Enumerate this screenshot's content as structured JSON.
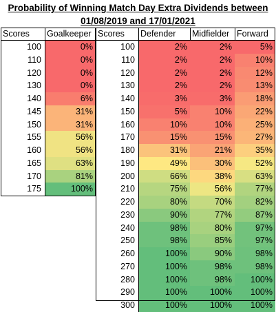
{
  "title": {
    "line1": "Probability of Winning Match Day Extra Dividends between",
    "line2": "01/08/2019 and 17/01/2021"
  },
  "goalkeeper_table": {
    "headers": [
      "Scores",
      "Goalkeeper"
    ],
    "rows": [
      {
        "score": "100",
        "gk": "0%",
        "color": "#f8696b"
      },
      {
        "score": "110",
        "gk": "0%",
        "color": "#f8696b"
      },
      {
        "score": "120",
        "gk": "0%",
        "color": "#f8696b"
      },
      {
        "score": "130",
        "gk": "0%",
        "color": "#f8696b"
      },
      {
        "score": "140",
        "gk": "6%",
        "color": "#f97d6e"
      },
      {
        "score": "145",
        "gk": "31%",
        "color": "#fbb479"
      },
      {
        "score": "150",
        "gk": "31%",
        "color": "#fbb479"
      },
      {
        "score": "155",
        "gk": "56%",
        "color": "#f0e383"
      },
      {
        "score": "160",
        "gk": "56%",
        "color": "#f0e383"
      },
      {
        "score": "165",
        "gk": "63%",
        "color": "#dfe082"
      },
      {
        "score": "170",
        "gk": "81%",
        "color": "#a9d27f"
      },
      {
        "score": "175",
        "gk": "100%",
        "color": "#63be7b"
      }
    ]
  },
  "outfield_table": {
    "headers": [
      "Scores",
      "Defender",
      "Midfielder",
      "Forward"
    ],
    "rows": [
      {
        "score": "100",
        "def": "2%",
        "def_color": "#f8696b",
        "mid": "2%",
        "mid_color": "#f8696b",
        "fwd": "5%",
        "fwd_color": "#f8696b"
      },
      {
        "score": "110",
        "def": "2%",
        "def_color": "#f8696b",
        "mid": "2%",
        "mid_color": "#f8696b",
        "fwd": "10%",
        "fwd_color": "#f98170"
      },
      {
        "score": "120",
        "def": "2%",
        "def_color": "#f8696b",
        "mid": "2%",
        "mid_color": "#f8696b",
        "fwd": "12%",
        "fwd_color": "#f98971"
      },
      {
        "score": "130",
        "def": "2%",
        "def_color": "#f8696b",
        "mid": "2%",
        "mid_color": "#f8696b",
        "fwd": "13%",
        "fwd_color": "#f98c71"
      },
      {
        "score": "140",
        "def": "3%",
        "def_color": "#f86c6b",
        "mid": "3%",
        "mid_color": "#f86c6b",
        "fwd": "18%",
        "fwd_color": "#fa9c74"
      },
      {
        "score": "150",
        "def": "5%",
        "def_color": "#f8716c",
        "mid": "10%",
        "mid_color": "#f98170",
        "fwd": "22%",
        "fwd_color": "#faa775"
      },
      {
        "score": "160",
        "def": "10%",
        "def_color": "#f98170",
        "mid": "10%",
        "mid_color": "#f98170",
        "fwd": "25%",
        "fwd_color": "#fbb077"
      },
      {
        "score": "170",
        "def": "15%",
        "def_color": "#f99172",
        "mid": "15%",
        "mid_color": "#f99172",
        "fwd": "27%",
        "fwd_color": "#fbb678"
      },
      {
        "score": "180",
        "def": "31%",
        "def_color": "#fbc37b",
        "mid": "21%",
        "mid_color": "#faa475",
        "fwd": "35%",
        "fwd_color": "#fccf7e"
      },
      {
        "score": "190",
        "def": "49%",
        "def_color": "#fee882",
        "mid": "30%",
        "mid_color": "#fbc07a",
        "fwd": "52%",
        "fwd_color": "#f6e883"
      },
      {
        "score": "200",
        "def": "66%",
        "def_color": "#cfdd82",
        "mid": "38%",
        "mid_color": "#fdd87f",
        "fwd": "63%",
        "fwd_color": "#d8df82"
      },
      {
        "score": "210",
        "def": "75%",
        "def_color": "#b6d680",
        "mid": "56%",
        "mid_color": "#ede683",
        "fwd": "77%",
        "fwd_color": "#b1d47f"
      },
      {
        "score": "220",
        "def": "80%",
        "def_color": "#a8d27f",
        "mid": "70%",
        "mid_color": "#c4da81",
        "fwd": "82%",
        "fwd_color": "#a3d07f"
      },
      {
        "score": "230",
        "def": "90%",
        "def_color": "#8ac97e",
        "mid": "77%",
        "mid_color": "#b1d47f",
        "fwd": "87%",
        "fwd_color": "#93cc7e"
      },
      {
        "score": "240",
        "def": "98%",
        "def_color": "#6ec17c",
        "mid": "80%",
        "mid_color": "#a8d27f",
        "fwd": "97%",
        "fwd_color": "#72c27c"
      },
      {
        "score": "250",
        "def": "98%",
        "def_color": "#6ec17c",
        "mid": "85%",
        "mid_color": "#99ce7e",
        "fwd": "97%",
        "fwd_color": "#72c27c"
      },
      {
        "score": "260",
        "def": "100%",
        "def_color": "#63be7b",
        "mid": "90%",
        "mid_color": "#8ac97e",
        "fwd": "98%",
        "fwd_color": "#6ec17c"
      },
      {
        "score": "270",
        "def": "100%",
        "def_color": "#63be7b",
        "mid": "98%",
        "mid_color": "#6ec17c",
        "fwd": "98%",
        "fwd_color": "#6ec17c"
      },
      {
        "score": "280",
        "def": "100%",
        "def_color": "#63be7b",
        "mid": "98%",
        "mid_color": "#6ec17c",
        "fwd": "100%",
        "fwd_color": "#63be7b"
      },
      {
        "score": "290",
        "def": "100%",
        "def_color": "#63be7b",
        "mid": "100%",
        "mid_color": "#63be7b",
        "fwd": "100%",
        "fwd_color": "#63be7b"
      },
      {
        "score": "300",
        "def": "100%",
        "def_color": "#63be7b",
        "mid": "100%",
        "mid_color": "#63be7b",
        "fwd": "100%",
        "fwd_color": "#63be7b"
      }
    ]
  }
}
